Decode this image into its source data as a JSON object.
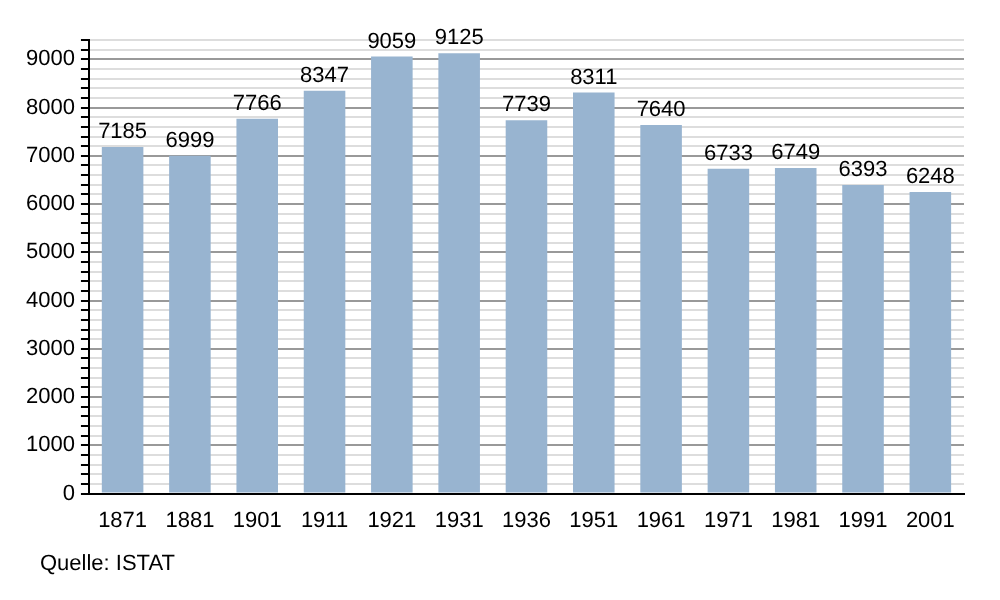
{
  "chart_data": {
    "type": "bar",
    "categories": [
      "1871",
      "1881",
      "1901",
      "1911",
      "1921",
      "1931",
      "1936",
      "1951",
      "1961",
      "1971",
      "1981",
      "1991",
      "2001"
    ],
    "values": [
      7185,
      6999,
      7766,
      8347,
      9059,
      9125,
      7739,
      8311,
      7640,
      6733,
      6749,
      6393,
      6248
    ],
    "color": "#98b4d0",
    "data_labels": true,
    "grid": "y",
    "ylim": [
      0,
      9400
    ],
    "yticks": [
      0,
      {
        "value": 200,
        "label": null
      },
      {
        "value": 400,
        "label": null
      },
      {
        "value": 600,
        "label": null
      },
      {
        "value": 800,
        "label": null
      },
      1000,
      {
        "value": 1200,
        "label": null
      },
      {
        "value": 1400,
        "label": null
      },
      {
        "value": 1600,
        "label": null
      },
      {
        "value": 1800,
        "label": null
      },
      2000,
      {
        "value": 2200,
        "label": null
      },
      {
        "value": 2400,
        "label": null
      },
      {
        "value": 2600,
        "label": null
      },
      {
        "value": 2800,
        "label": null
      },
      3000,
      {
        "value": 3200,
        "label": null
      },
      {
        "value": 3400,
        "label": null
      },
      {
        "value": 3600,
        "label": null
      },
      {
        "value": 3800,
        "label": null
      },
      4000,
      {
        "value": 4200,
        "label": null
      },
      {
        "value": 4400,
        "label": null
      },
      {
        "value": 4600,
        "label": null
      },
      {
        "value": 4800,
        "label": null
      },
      5000,
      {
        "value": 5200,
        "label": null
      },
      {
        "value": 5400,
        "label": null
      },
      {
        "value": 5600,
        "label": null
      },
      {
        "value": 5800,
        "label": null
      },
      6000,
      {
        "value": 6200,
        "label": null
      },
      {
        "value": 6400,
        "label": null
      },
      {
        "value": 6600,
        "label": null
      },
      {
        "value": 6800,
        "label": null
      },
      7000,
      {
        "value": 7200,
        "label": null
      },
      {
        "value": 7400,
        "label": null
      },
      {
        "value": 7600,
        "label": null
      },
      {
        "value": 7800,
        "label": null
      },
      8000,
      {
        "value": 8200,
        "label": null
      },
      {
        "value": 8400,
        "label": null
      },
      {
        "value": 8600,
        "label": null
      },
      {
        "value": 8800,
        "label": null
      },
      9000,
      {
        "value": 9200,
        "label": null
      },
      {
        "value": 9400,
        "label": null
      }
    ],
    "annotations": [
      "Quelle: ISTAT"
    ]
  }
}
